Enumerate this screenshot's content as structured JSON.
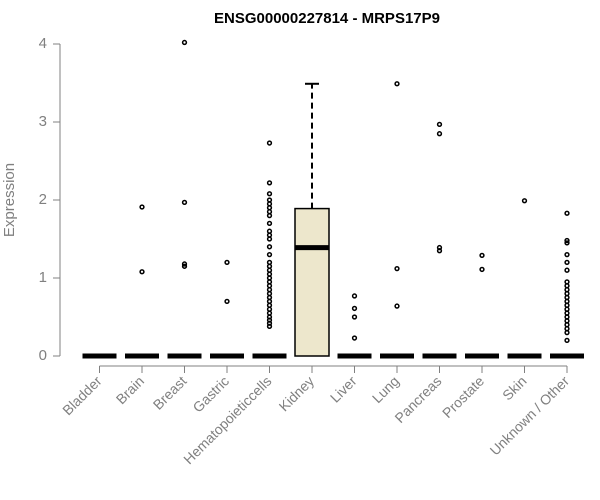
{
  "chart_data": {
    "type": "boxplot",
    "title": "ENSG00000227814 - MRPS17P9",
    "xlabel": "",
    "ylabel": "Expression",
    "ylim": [
      0,
      4
    ],
    "yticks": [
      0,
      1,
      2,
      3,
      4
    ],
    "grid": false,
    "legend": "none",
    "colors": {
      "box_fill": "#ede7cc",
      "axis": "#808080",
      "ink": "#000000"
    },
    "categories": [
      "Bladder",
      "Brain",
      "Breast",
      "Gastric",
      "Hematopoieticcells",
      "Kidney",
      "Liver",
      "Lung",
      "Pancreas",
      "Prostate",
      "Skin",
      "Unknown / Other"
    ],
    "boxes": [
      {
        "category": "Bladder",
        "q1": 0,
        "median": 0,
        "q3": 0,
        "whisker_low": 0,
        "whisker_high": 0,
        "outliers": []
      },
      {
        "category": "Brain",
        "q1": 0,
        "median": 0,
        "q3": 0,
        "whisker_low": 0,
        "whisker_high": 0,
        "outliers": [
          1.08,
          1.91
        ]
      },
      {
        "category": "Breast",
        "q1": 0,
        "median": 0,
        "q3": 0,
        "whisker_low": 0,
        "whisker_high": 0,
        "outliers": [
          1.15,
          1.18,
          1.97,
          4.02
        ]
      },
      {
        "category": "Gastric",
        "q1": 0,
        "median": 0,
        "q3": 0,
        "whisker_low": 0,
        "whisker_high": 0,
        "outliers": [
          0.7,
          1.2
        ]
      },
      {
        "category": "Hematopoieticcells",
        "q1": 0,
        "median": 0,
        "q3": 0,
        "whisker_low": 0,
        "whisker_high": 0,
        "outliers": [
          0.38,
          0.42,
          0.46,
          0.5,
          0.55,
          0.6,
          0.65,
          0.7,
          0.75,
          0.8,
          0.85,
          0.9,
          0.95,
          1.0,
          1.05,
          1.1,
          1.15,
          1.2,
          1.3,
          1.4,
          1.5,
          1.55,
          1.6,
          1.7,
          1.8,
          1.85,
          1.9,
          1.95,
          2.0,
          2.08,
          2.22,
          2.73
        ]
      },
      {
        "category": "Kidney",
        "q1": 0,
        "median": 1.39,
        "q3": 1.89,
        "whisker_low": 0,
        "whisker_high": 3.49,
        "outliers": []
      },
      {
        "category": "Liver",
        "q1": 0,
        "median": 0,
        "q3": 0,
        "whisker_low": 0,
        "whisker_high": 0,
        "outliers": [
          0.23,
          0.5,
          0.61,
          0.77
        ]
      },
      {
        "category": "Lung",
        "q1": 0,
        "median": 0,
        "q3": 0,
        "whisker_low": 0,
        "whisker_high": 0,
        "outliers": [
          0.64,
          1.12,
          3.49
        ]
      },
      {
        "category": "Pancreas",
        "q1": 0,
        "median": 0,
        "q3": 0,
        "whisker_low": 0,
        "whisker_high": 0,
        "outliers": [
          1.35,
          1.39,
          2.85,
          2.97
        ]
      },
      {
        "category": "Prostate",
        "q1": 0,
        "median": 0,
        "q3": 0,
        "whisker_low": 0,
        "whisker_high": 0,
        "outliers": [
          1.11,
          1.29
        ]
      },
      {
        "category": "Skin",
        "q1": 0,
        "median": 0,
        "q3": 0,
        "whisker_low": 0,
        "whisker_high": 0,
        "outliers": [
          1.99
        ]
      },
      {
        "category": "Unknown / Other",
        "q1": 0,
        "median": 0,
        "q3": 0,
        "whisker_low": 0,
        "whisker_high": 0,
        "outliers": [
          0.2,
          0.3,
          0.35,
          0.4,
          0.45,
          0.5,
          0.55,
          0.6,
          0.65,
          0.7,
          0.75,
          0.8,
          0.85,
          0.9,
          0.95,
          1.1,
          1.2,
          1.3,
          1.45,
          1.48,
          1.83
        ]
      }
    ]
  }
}
